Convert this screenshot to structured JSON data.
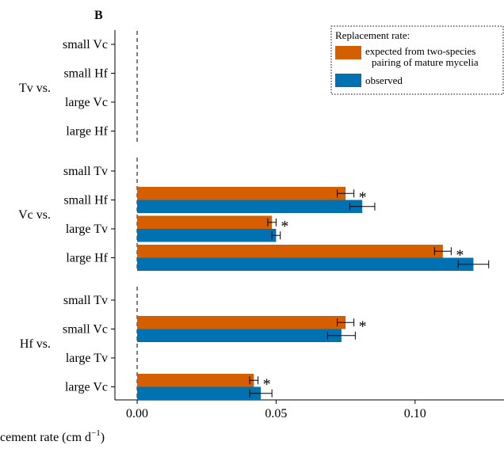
{
  "panel_label": "B",
  "chart_data": {
    "type": "bar",
    "orientation": "horizontal",
    "xlabel": "cement rate (cm d",
    "xlabel_sup": "−1",
    "xlabel_close": ")",
    "xlim": [
      -0.008,
      0.132
    ],
    "xticks": [
      0.0,
      0.05,
      0.1
    ],
    "xtick_labels": [
      "0.00",
      "0.05",
      "0.10"
    ],
    "legend": {
      "title": "Replacement rate:",
      "entries": [
        {
          "line1": "expected from two-species",
          "line2": "pairing of mature mycelia",
          "color_key": "expected"
        },
        {
          "line1": "observed",
          "line2": "",
          "color_key": "observed"
        }
      ]
    },
    "colors": {
      "expected": "#D55E00",
      "observed": "#0072B2"
    },
    "groups": [
      {
        "label": "Tv vs.",
        "rows": [
          {
            "label": "small Vc",
            "expected": null,
            "observed": null,
            "expected_err": null,
            "observed_err": null,
            "sig": ""
          },
          {
            "label": "small Hf",
            "expected": null,
            "observed": null,
            "expected_err": null,
            "observed_err": null,
            "sig": ""
          },
          {
            "label": "large Vc",
            "expected": null,
            "observed": null,
            "expected_err": null,
            "observed_err": null,
            "sig": ""
          },
          {
            "label": "large Hf",
            "expected": null,
            "observed": null,
            "expected_err": null,
            "observed_err": null,
            "sig": ""
          }
        ]
      },
      {
        "label": "Vc vs.",
        "rows": [
          {
            "label": "small Tv",
            "expected": null,
            "observed": null,
            "expected_err": null,
            "observed_err": null,
            "sig": ""
          },
          {
            "label": "small Hf",
            "expected": 0.075,
            "observed": 0.081,
            "expected_err": 0.003,
            "observed_err": 0.0045,
            "sig": "*"
          },
          {
            "label": "large Tv",
            "expected": 0.0485,
            "observed": 0.05,
            "expected_err": 0.0015,
            "observed_err": 0.0015,
            "sig": "*"
          },
          {
            "label": "large Hf",
            "expected": 0.11,
            "observed": 0.121,
            "expected_err": 0.003,
            "observed_err": 0.0055,
            "sig": "*"
          }
        ]
      },
      {
        "label": "Hf vs.",
        "rows": [
          {
            "label": "small Tv",
            "expected": null,
            "observed": null,
            "expected_err": null,
            "observed_err": null,
            "sig": ""
          },
          {
            "label": "small Vc",
            "expected": 0.075,
            "observed": 0.0735,
            "expected_err": 0.003,
            "observed_err": 0.005,
            "sig": "*"
          },
          {
            "label": "large Tv",
            "expected": null,
            "observed": null,
            "expected_err": null,
            "observed_err": null,
            "sig": ""
          },
          {
            "label": "large Vc",
            "expected": 0.042,
            "observed": 0.0445,
            "expected_err": 0.0015,
            "observed_err": 0.004,
            "sig": "*"
          }
        ]
      }
    ]
  }
}
